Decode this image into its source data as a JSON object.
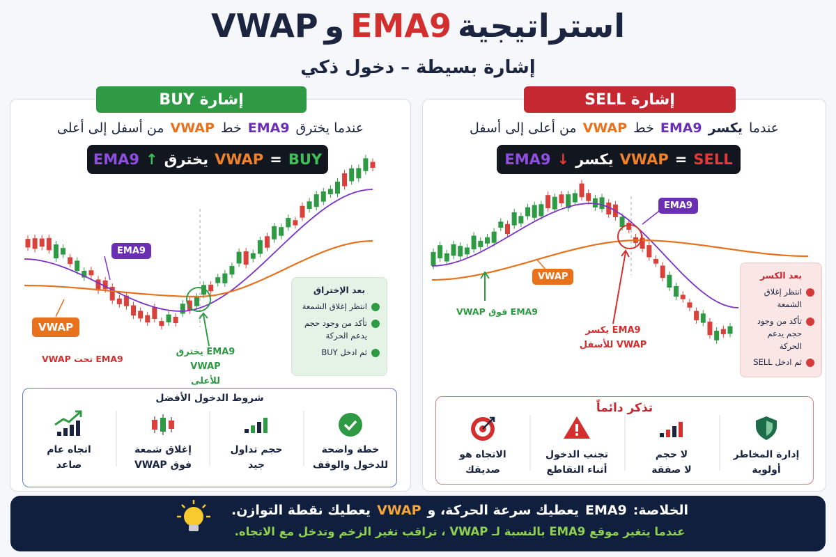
{
  "header": {
    "title": [
      "استراتيجية",
      "EMA9",
      "و",
      "VWAP"
    ],
    "subtitle": "إشارة بسيطة – دخول ذكي"
  },
  "buy": {
    "badge": "إشارة BUY",
    "description": [
      "عندما يخترق",
      "EMA9",
      "خط",
      "VWAP",
      "من أسفل إلى أعلى"
    ],
    "formula": [
      "EMA9",
      "↑",
      "يخترق",
      "VWAP",
      "=",
      "BUY"
    ],
    "chart_labels": {
      "ema": "EMA9",
      "vwap": "VWAP",
      "below": "EMA9 تحت VWAP",
      "cross": [
        "EMA9 يخترق",
        "VWAP للأعلى"
      ]
    },
    "checklist": {
      "title": "بعد الإختراق",
      "items": [
        "انتظر إغلاق الشمعة",
        "تأكد من وجود حجم يدعم الحركة",
        "ثم ادخل BUY"
      ]
    },
    "conditions": {
      "title": "شروط الدخول الأفضل",
      "items": [
        [
          "خطة واضحة",
          "للدخول والوقف"
        ],
        [
          "حجم تداول",
          "جيد"
        ],
        [
          "إغلاق شمعة",
          "فوق VWAP"
        ],
        [
          "اتجاه عام",
          "صاعد"
        ]
      ]
    }
  },
  "sell": {
    "badge": "إشارة SELL",
    "description": [
      "عندما",
      "يكسر",
      "EMA9",
      "خط",
      "VWAP",
      "من أعلى إلى أسفل"
    ],
    "formula": [
      "EMA9",
      "↓",
      "يكسر",
      "VWAP",
      "=",
      "SELL"
    ],
    "chart_labels": {
      "ema": "EMA9",
      "vwap": "VWAP",
      "above": "EMA9 فوق VWAP",
      "cross": [
        "EMA9 يكسر",
        "VWAP للأسفل"
      ]
    },
    "checklist": {
      "title": "بعد الكسر",
      "items": [
        "انتظر إغلاق الشمعة",
        "تأكد من وجود حجم يدعم الحركة",
        "ثم ادخل SELL"
      ]
    },
    "reminder": {
      "title": "تذكر دائماً",
      "items": [
        [
          "إدارة المخاطر",
          "أولوية"
        ],
        [
          "لا حجم",
          "لا صفقة"
        ],
        [
          "تجنب الدخول",
          "أثناء التقاطع"
        ],
        [
          "الاتجاه هو",
          "صديقك"
        ]
      ]
    }
  },
  "footer": {
    "line1": [
      "الخلاصة:",
      "EMA9",
      "يعطيك سرعة الحركة، و",
      "VWAP",
      "يعطيك نقطة التوازن."
    ],
    "line2": "عندما يتغير موقع EMA9 بالنسبة لـ VWAP ، تراقب تغير الزخم وتدخل مع الاتجاه."
  }
}
